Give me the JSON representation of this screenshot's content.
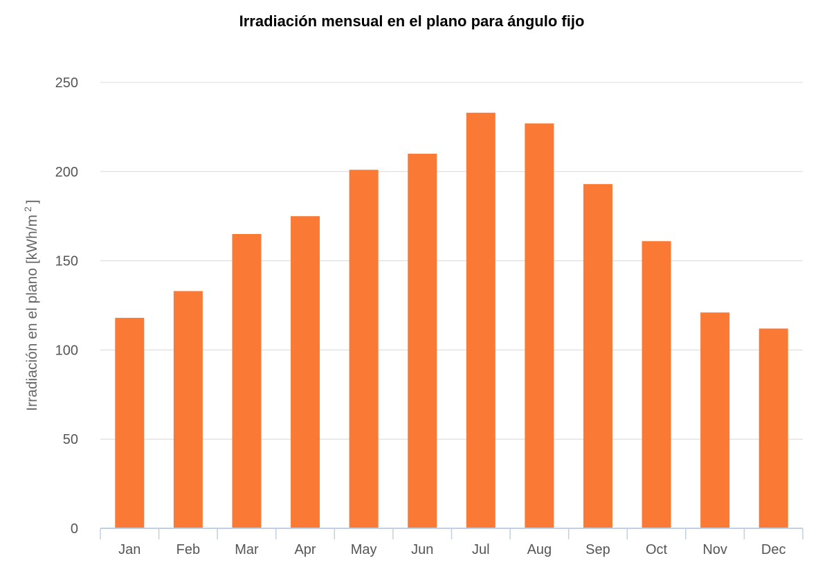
{
  "chart_data": {
    "type": "bar",
    "title": "Irradiación mensual en el plano para ángulo fijo",
    "xlabel": "",
    "ylabel": "Irradiación en el plano [kWh/m",
    "ylabel_superscript": "2",
    "ylabel_suffix": "]",
    "categories": [
      "Jan",
      "Feb",
      "Mar",
      "Apr",
      "May",
      "Jun",
      "Jul",
      "Aug",
      "Sep",
      "Oct",
      "Nov",
      "Dec"
    ],
    "series": [
      {
        "values": [
          118,
          133,
          165,
          175,
          201,
          210,
          233,
          227,
          193,
          161,
          121,
          112
        ]
      }
    ],
    "ylim": [
      0,
      250
    ],
    "yticks": [
      0,
      50,
      100,
      150,
      200,
      250
    ],
    "grid": true,
    "legend": "none",
    "bar_color": "#fa7a35",
    "grid_color": "#d8d8d8",
    "axis_color": "#c0d0e0"
  }
}
